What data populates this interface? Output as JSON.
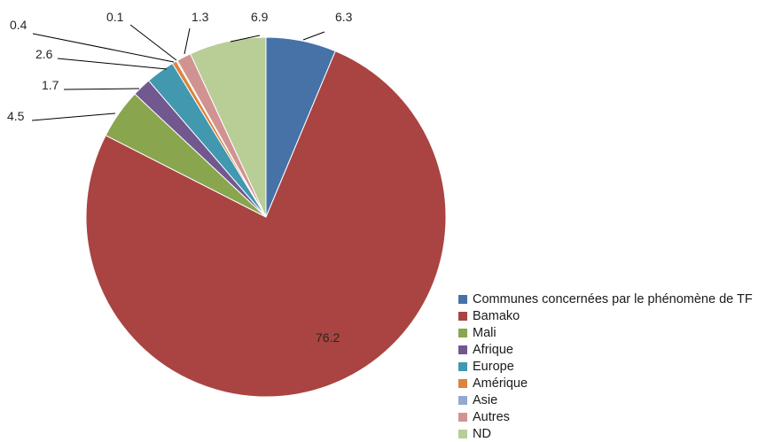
{
  "chart_data": {
    "type": "pie",
    "title": "",
    "legend_position": "bottom-right",
    "slices": [
      {
        "label": "Communes concernées par le phénomène de TF",
        "value": 6.3,
        "display": "6.3",
        "color": "#4672A8"
      },
      {
        "label": "Bamako",
        "value": 76.2,
        "display": "76.2",
        "color": "#A94442"
      },
      {
        "label": "Mali",
        "value": 4.5,
        "display": "4.5",
        "color": "#89A54E"
      },
      {
        "label": "Afrique",
        "value": 1.7,
        "display": "1.7",
        "color": "#71588F"
      },
      {
        "label": "Europe",
        "value": 2.6,
        "display": "2.6",
        "color": "#4198AF"
      },
      {
        "label": "Amérique",
        "value": 0.4,
        "display": "0.4",
        "color": "#DB843D"
      },
      {
        "label": "Asie",
        "value": 0.1,
        "display": "0.1",
        "color": "#93A9CF"
      },
      {
        "label": "Autres",
        "value": 1.3,
        "display": "1.3",
        "color": "#D19392"
      },
      {
        "label": "ND",
        "value": 6.9,
        "display": "6.9",
        "color": "#B9CD96"
      }
    ]
  }
}
